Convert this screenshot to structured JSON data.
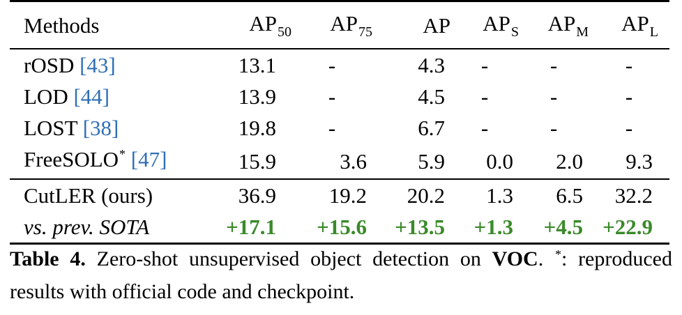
{
  "table": {
    "headers": {
      "methods": "Methods",
      "ap50_main": "AP",
      "ap50_sub": "50",
      "ap75_main": "AP",
      "ap75_sub": "75",
      "ap": "AP",
      "aps_main": "AP",
      "aps_sub": "S",
      "apm_main": "AP",
      "apm_sub": "M",
      "apl_main": "AP",
      "apl_sub": "L"
    },
    "rows": [
      {
        "name": "rOSD ",
        "cite": "[43]",
        "ap50": "13.1",
        "ap75": "-",
        "ap": "4.3",
        "aps": "-",
        "apm": "-",
        "apl": "-"
      },
      {
        "name": "LOD ",
        "cite": "[44]",
        "ap50": "13.9",
        "ap75": "-",
        "ap": "4.5",
        "aps": "-",
        "apm": "-",
        "apl": "-"
      },
      {
        "name": "LOST ",
        "cite": "[38]",
        "ap50": "19.8",
        "ap75": "-",
        "ap": "6.7",
        "aps": "-",
        "apm": "-",
        "apl": "-"
      },
      {
        "name": "FreeSOLO",
        "star": "*",
        "cite": "[47]",
        "ap50": "15.9",
        "ap75": "3.6",
        "ap": "5.9",
        "aps": "0.0",
        "apm": "2.0",
        "apl": "9.3"
      }
    ],
    "ours": {
      "name": "CutLER (ours)",
      "ap50": "36.9",
      "ap75": "19.2",
      "ap": "20.2",
      "aps": "1.3",
      "apm": "6.5",
      "apl": "32.2"
    },
    "delta": {
      "name": "vs. prev. SOTA",
      "ap50": "+17.1",
      "ap75": "+15.6",
      "ap": "+13.5",
      "aps": "+1.3",
      "apm": "+4.5",
      "apl": "+22.9"
    }
  },
  "caption": {
    "label": "Table 4.",
    "text_a": " Zero-shot unsupervised object detection on ",
    "bold_voc": "VOC",
    "text_b": ". ",
    "star": "*",
    "text_c": ": reproduced results with official code and checkpoint."
  },
  "colors": {
    "citation": "#2f6fb6",
    "improvement": "#3a8a2a"
  }
}
